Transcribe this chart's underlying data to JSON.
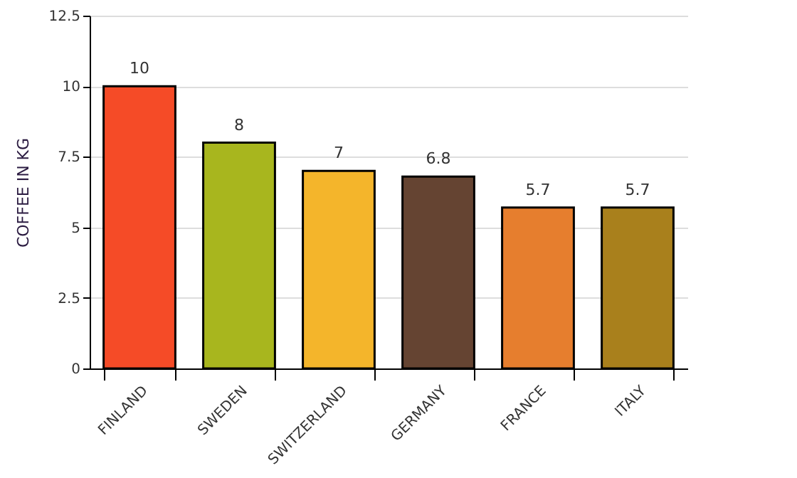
{
  "chart_data": {
    "type": "bar",
    "ylabel": "COFFEE IN KG",
    "categories": [
      "FINLAND",
      "SWEDEN",
      "SWITZERLAND",
      "GERMANY",
      "FRANCE",
      "ITALY"
    ],
    "values": [
      10,
      8,
      7,
      6.8,
      5.7,
      5.7
    ],
    "colors": [
      "#f54b27",
      "#a8b61e",
      "#f4b52b",
      "#654432",
      "#e67e2e",
      "#a9801c"
    ],
    "ylim": [
      0,
      12.5
    ],
    "yticks": [
      0,
      2.5,
      5,
      7.5,
      10,
      12.5
    ],
    "grid": "y",
    "data_labels": true
  }
}
